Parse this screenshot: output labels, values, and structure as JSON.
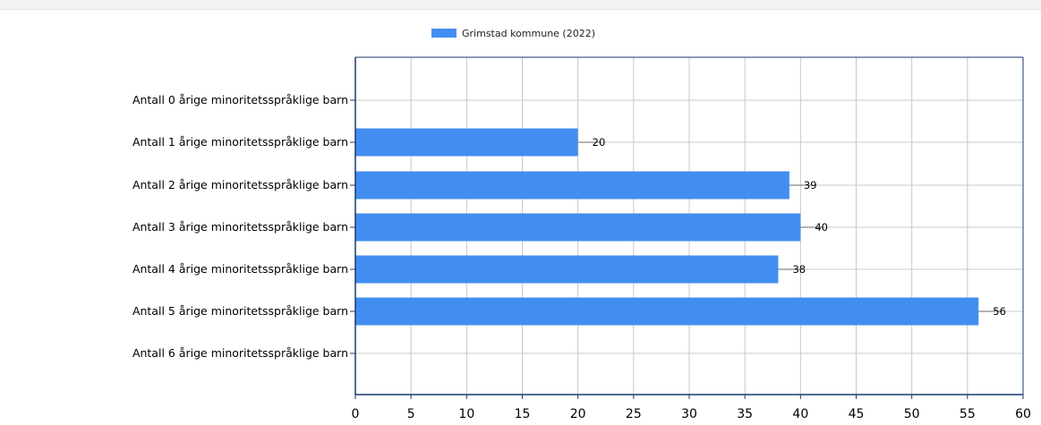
{
  "chart_data": {
    "type": "bar",
    "orientation": "horizontal",
    "title": "",
    "xlabel": "",
    "ylabel": "",
    "xlim": [
      0,
      60
    ],
    "x_ticks": [
      0,
      5,
      10,
      15,
      20,
      25,
      30,
      35,
      40,
      45,
      50,
      55,
      60
    ],
    "grid": true,
    "legend_placement": "top-center",
    "categories": [
      "Antall 0 årige minoritetsspråklige barn",
      "Antall 1 årige minoritetsspråklige barn",
      "Antall 2 årige minoritetsspråklige barn",
      "Antall 3 årige minoritetsspråklige barn",
      "Antall 4 årige minoritetsspråklige barn",
      "Antall 5 årige minoritetsspråklige barn",
      "Antall 6 årige minoritetsspråklige barn"
    ],
    "series": [
      {
        "name": "Grimstad kommune (2022)",
        "color": "#428ef0",
        "values": [
          null,
          20,
          39,
          40,
          38,
          56,
          null
        ],
        "data_labels": [
          "",
          "20",
          "39",
          "40",
          "38",
          "56",
          ""
        ]
      }
    ],
    "colors": {
      "grid": "#c8c8c8",
      "axis": "#1a3a6b",
      "border": "#1a3a6b"
    }
  }
}
